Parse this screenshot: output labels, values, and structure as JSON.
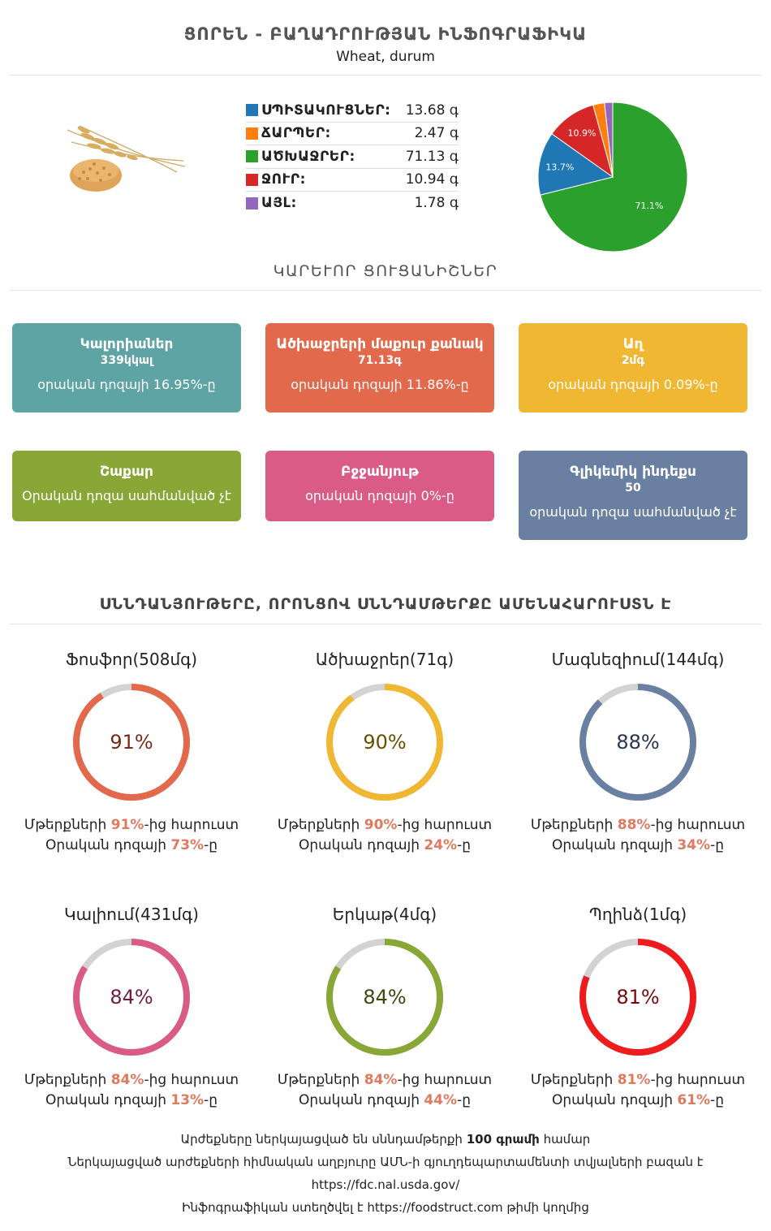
{
  "header": {
    "title": "ՑՈՐԵՆ - ԲԱՂԱԴՐՈՒԹՅԱՆ ԻՆՖՈԳՐԱՖԻԿԱ",
    "subtitle": "Wheat, durum"
  },
  "macros": [
    {
      "label": "ՍՊԻՏԱԿՈՒՑՆԵՐ:",
      "value": "13.68 գ",
      "color": "#1f77b4"
    },
    {
      "label": "ՃԱՐՊԵՐ:",
      "value": "2.47 գ",
      "color": "#ff7f0e"
    },
    {
      "label": "ԱԾԽԱՋՐԵՐ:",
      "value": "71.13 գ",
      "color": "#2ca02c"
    },
    {
      "label": "ՋՈՒՐ:",
      "value": "10.94 գ",
      "color": "#d62728"
    },
    {
      "label": "ԱՅԼ:",
      "value": "1.78 գ",
      "color": "#9467bd"
    }
  ],
  "chart_data": {
    "type": "pie",
    "slices": [
      {
        "value": 71.13,
        "label": "71.1%",
        "color": "#2ca02c"
      },
      {
        "value": 13.68,
        "label": "13.7%",
        "color": "#1f77b4"
      },
      {
        "value": 10.94,
        "label": "10.9%",
        "color": "#d62728"
      },
      {
        "value": 2.47,
        "label": "",
        "color": "#ff7f0e"
      },
      {
        "value": 1.78,
        "label": "",
        "color": "#9467bd"
      }
    ]
  },
  "section_key": "ԿԱՐԵՒՈՐ ՑՈՒՑԱՆԻՇՆԵՐ",
  "cards": [
    {
      "title": "Կալորիաներ",
      "value": "339կկալ",
      "sub": "օրական դոզայի 16.95%-ը",
      "color": "#5ea4a4"
    },
    {
      "title": "Ածխաջրերի մաքուր քանակ",
      "value": "71.13գ",
      "sub": "օրական դոզայի 11.86%-ը",
      "color": "#e2694b"
    },
    {
      "title": "Աղ",
      "value": "2մգ",
      "sub": "օրական դոզայի 0.09%-ը",
      "color": "#f0b733"
    },
    {
      "title": "Շաքար",
      "value": "",
      "sub": "Օրական դոզա սահմանված չէ",
      "color": "#88a736"
    },
    {
      "title": "Բջջանյութ",
      "value": "",
      "sub": "օրական դոզայի 0%-ը",
      "color": "#d95b86"
    },
    {
      "title": "Գլիկեմիկ ինդեքս",
      "value": "50",
      "sub": "օրական դոզա սահմանված չէ",
      "color": "#6a80a2"
    }
  ],
  "section_nutrients": "ՍՆՆԴԱՆՅՈՒԹԵՐԸ, ՈՐՈՆՑՈՎ ՍՆՆԴԱՄԹԵՐՔԸ ԱՄԵՆԱՀԱՐՈՒՍՏՆ Է",
  "rings": [
    {
      "title": "Ֆոսֆոր(508մգ)",
      "percent": 91,
      "label": "91%",
      "richer": "91%",
      "daily": "73%",
      "color": "#e2694b",
      "text_color": "#7a2a1a"
    },
    {
      "title": "Ածխաջրեր(71գ)",
      "percent": 90,
      "label": "90%",
      "richer": "90%",
      "daily": "24%",
      "color": "#f0b733",
      "text_color": "#6b4e00"
    },
    {
      "title": "Մագնեզիում(144մգ)",
      "percent": 88,
      "label": "88%",
      "richer": "88%",
      "daily": "34%",
      "color": "#6a80a2",
      "text_color": "#2a3550"
    },
    {
      "title": "Կալիում(431մգ)",
      "percent": 84,
      "label": "84%",
      "richer": "84%",
      "daily": "13%",
      "color": "#d95b86",
      "text_color": "#6e1f3c"
    },
    {
      "title": "Երկաթ(4մգ)",
      "percent": 84,
      "label": "84%",
      "richer": "84%",
      "daily": "44%",
      "color": "#88a736",
      "text_color": "#3a4a10"
    },
    {
      "title": "Պղինձ(1մգ)",
      "percent": 81,
      "label": "81%",
      "richer": "81%",
      "daily": "61%",
      "color": "#ee1c1c",
      "text_color": "#7a0a0a"
    }
  ],
  "ring_text": {
    "richer_prefix": "Մթերքների ",
    "richer_suffix": "-ից հարուստ",
    "daily_prefix": "Օրական դոզայի ",
    "daily_suffix": "-ը"
  },
  "footer": {
    "line1_a": "Արժեքները ներկայացված են սննդամթերքի ",
    "line1_b": "100 գրամի",
    "line1_c": " համար",
    "line2": "Ներկայացված արժեքների հիմնական աղբյուրը ԱՄՆ-ի գյուղդեպարտամենտի տվյալների բազան է",
    "line3": "https://fdc.nal.usda.gov/",
    "line4_a": "Ինֆոգրաֆիկան ստեղծվել է ",
    "line4_b": "https://foodstruct.com",
    "line4_c": " թիմի կողմից"
  },
  "colors": {
    "ring_track": "#d3d3d3"
  }
}
